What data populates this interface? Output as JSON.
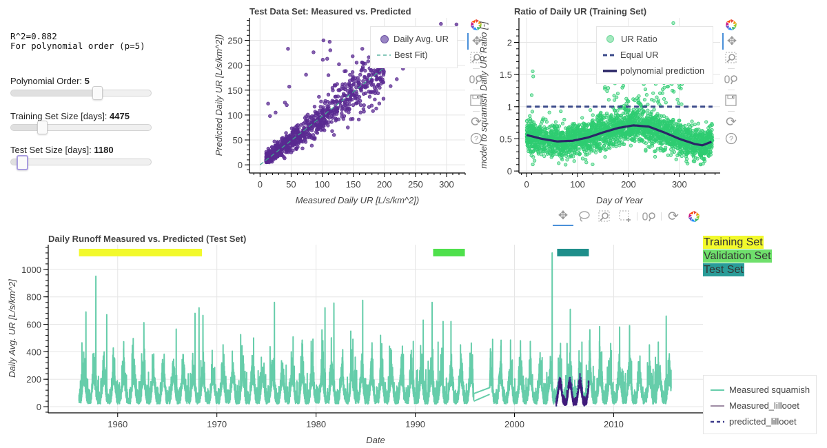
{
  "stats": {
    "r2_line": "R^2=0.882",
    "order_line": "For polynomial order (p=5)"
  },
  "sliders": [
    {
      "label": "Polynomial Order: ",
      "value": "5",
      "fraction": 0.62
    },
    {
      "label": "Training Set Size [days]: ",
      "value": "4475",
      "fraction": 0.2
    },
    {
      "label": "Test Set Size [days]: ",
      "value": "1180",
      "fraction": 0.04
    }
  ],
  "toolbar": {
    "tools": [
      "bokeh-logo",
      "pan",
      "box-zoom",
      "wheel-zoom",
      "save",
      "reset",
      "help"
    ],
    "bottom_tools": [
      "pan",
      "lasso-select",
      "box-zoom",
      "box-select",
      "wheel-zoom",
      "reset",
      "bokeh-logo"
    ]
  },
  "colors": {
    "scatter_purple": "#5a2a91",
    "best_fit": "#3fa890",
    "ratio_green": "#2ecc71",
    "equal_ur": "#3b4a8a",
    "poly_line": "#2a2566",
    "squamish": "#66cdaa",
    "lillooet": "#3f1a7a",
    "training": "#f2f92c",
    "validation": "#4fe04c",
    "test": "#1e8e8a"
  },
  "chart_data": [
    {
      "type": "scatter",
      "title": "Test Data Set: Measured vs. Predicted",
      "xlabel": "Measured Daily UR [L/s/km^2])",
      "ylabel": "Predicted Daily UR [L/s/km^2])",
      "xlim": [
        -17,
        330
      ],
      "ylim": [
        -15,
        295
      ],
      "xticks": [
        "0",
        "50",
        "100",
        "150",
        "200",
        "250",
        "300"
      ],
      "yticks": [
        "0",
        "50",
        "100",
        "150",
        "200",
        "250"
      ],
      "legend": [
        "Daily Avg. UR",
        "Best Fit)"
      ],
      "legend_position": "top-right",
      "best_fit": {
        "x": [
          0,
          215
        ],
        "y": [
          0,
          210
        ]
      },
      "outliers": [
        [
          45,
          233
        ],
        [
          86,
          226
        ],
        [
          102,
          250
        ],
        [
          112,
          247
        ],
        [
          113,
          230
        ],
        [
          101,
          211
        ],
        [
          108,
          213
        ],
        [
          127,
          202
        ],
        [
          149,
          218
        ],
        [
          74,
          181
        ],
        [
          47,
          157
        ],
        [
          13,
          123
        ],
        [
          16,
          98
        ],
        [
          40,
          125
        ],
        [
          43,
          120
        ],
        [
          187,
          113
        ],
        [
          119,
          60
        ],
        [
          88,
          52
        ],
        [
          58,
          33
        ],
        [
          210,
          158
        ],
        [
          220,
          172
        ],
        [
          230,
          193
        ],
        [
          190,
          198
        ],
        [
          175,
          216
        ],
        [
          165,
          205
        ],
        [
          291,
          283
        ],
        [
          316,
          282
        ],
        [
          110,
          180
        ],
        [
          120,
          160
        ],
        [
          25,
          105
        ]
      ],
      "cluster": {
        "x_range": [
          10,
          200
        ],
        "slope": 0.97,
        "spread": 12
      }
    },
    {
      "type": "scatter",
      "title": "Ratio of Daily UR (Training Set)",
      "xlabel": "Day of Year",
      "ylabel": "model to squamish Daily UR Ratio [-]",
      "xlim": [
        -15,
        380
      ],
      "ylim": [
        -0.02,
        2.38
      ],
      "xticks": [
        "0",
        "100",
        "200",
        "300"
      ],
      "yticks": [
        "0",
        "0.5",
        "1",
        "1.5",
        "2"
      ],
      "legend": [
        "UR Ratio",
        "Equal UR",
        "polynomial prediction"
      ],
      "legend_position": "top-right",
      "equal_ur": 1,
      "poly_curve": {
        "x": [
          0,
          30,
          60,
          90,
          120,
          150,
          180,
          210,
          240,
          270,
          300,
          330,
          345,
          365
        ],
        "y": [
          0.56,
          0.5,
          0.46,
          0.47,
          0.52,
          0.6,
          0.67,
          0.71,
          0.69,
          0.6,
          0.5,
          0.42,
          0.4,
          0.46
        ]
      },
      "outliers": [
        [
          12,
          1.55
        ],
        [
          13,
          1.47
        ],
        [
          10,
          1.18
        ],
        [
          288,
          2.3
        ],
        [
          280,
          1.9
        ],
        [
          230,
          1.35
        ],
        [
          240,
          1.45
        ],
        [
          250,
          1.4
        ],
        [
          300,
          1.3
        ],
        [
          285,
          1.35
        ]
      ]
    },
    {
      "type": "line",
      "title": "Daily Runoff Measured vs. Predicted (Test Set)",
      "xlabel": "Date",
      "ylabel": "Daily Avg. UR [L/s/km^2]",
      "xlim": [
        1953,
        2019
      ],
      "ylim": [
        -40,
        1180
      ],
      "xticks": [
        "1960",
        "1970",
        "1980",
        "1990",
        "2000",
        "2010"
      ],
      "yticks": [
        "0",
        "200",
        "400",
        "600",
        "800",
        "1000"
      ],
      "series_legend": [
        "Measured squamish",
        "Measured_lillooet",
        "predicted_lillooet"
      ],
      "legend_position": "bottom-right",
      "data_range": [
        1956.1,
        2015.8
      ],
      "gap": [
        1995.9,
        1997.5
      ],
      "lillooet_range": [
        2004.2,
        2007.5
      ],
      "peaks": [
        [
          1956.4,
          465
        ],
        [
          1956.8,
          690
        ],
        [
          1957.8,
          950
        ],
        [
          1958.9,
          670
        ],
        [
          1962.7,
          420
        ],
        [
          1965.9,
          565
        ],
        [
          1967.8,
          680
        ],
        [
          1968.2,
          720
        ],
        [
          1968.6,
          665
        ],
        [
          1972.4,
          525
        ],
        [
          1973.7,
          500
        ],
        [
          1975.8,
          760
        ],
        [
          1977.5,
          400
        ],
        [
          1980.9,
          720
        ],
        [
          1981.8,
          755
        ],
        [
          1983.5,
          550
        ],
        [
          1984.7,
          775
        ],
        [
          1986.5,
          520
        ],
        [
          1987.4,
          440
        ],
        [
          1988.8,
          380
        ],
        [
          1989.8,
          475
        ],
        [
          1990.8,
          630
        ],
        [
          1991.7,
          760
        ],
        [
          1992.3,
          470
        ],
        [
          1992.8,
          620
        ],
        [
          1993.6,
          620
        ],
        [
          1996.3,
          420
        ],
        [
          1997.8,
          490
        ],
        [
          1999.6,
          485
        ],
        [
          2000.6,
          480
        ],
        [
          2001.6,
          475
        ],
        [
          2003.8,
          1120
        ],
        [
          2005.3,
          460
        ],
        [
          2006.8,
          470
        ],
        [
          2007.6,
          560
        ],
        [
          2008.8,
          400
        ],
        [
          2009.7,
          460
        ],
        [
          2010.6,
          580
        ],
        [
          2011.6,
          590
        ],
        [
          2013.6,
          450
        ],
        [
          2014.5,
          470
        ],
        [
          2015.3,
          660
        ]
      ],
      "set_bars": [
        {
          "name": "Training Set",
          "start": 1956.1,
          "end": 1968.5,
          "color": "#f2f92c"
        },
        {
          "name": "Validation Set",
          "start": 1991.8,
          "end": 1995.0,
          "color": "#4fe04c"
        },
        {
          "name": "Test Set",
          "start": 2004.3,
          "end": 2007.5,
          "color": "#1e8e8a"
        }
      ],
      "set_labels": [
        "Training Set",
        "Validation Set",
        "Test Set"
      ]
    }
  ]
}
